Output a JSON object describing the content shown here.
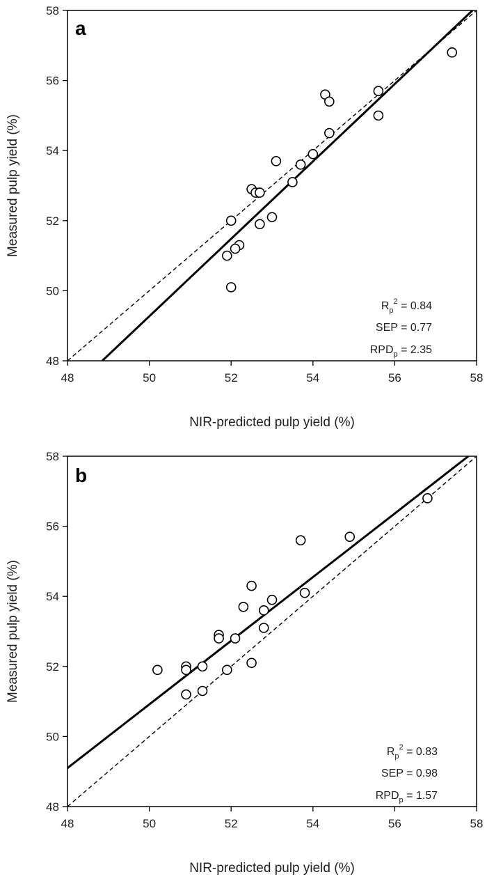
{
  "chart_data": [
    {
      "type": "scatter",
      "panel_label": "a",
      "xlabel": "NIR-predicted pulp yield (%)",
      "ylabel": "Measured pulp yield (%)",
      "xlim": [
        48,
        58
      ],
      "ylim": [
        48,
        58
      ],
      "xticks": [
        "48",
        "50",
        "52",
        "54",
        "56",
        "58"
      ],
      "yticks": [
        "48",
        "50",
        "52",
        "54",
        "56",
        "58"
      ],
      "grid": false,
      "points": {
        "x": [
          57.4,
          55.6,
          55.6,
          54.3,
          54.4,
          54.4,
          54.0,
          53.7,
          53.1,
          53.5,
          52.5,
          52.6,
          52.7,
          52.7,
          53.0,
          52.0,
          52.2,
          52.1,
          51.9,
          52.0
        ],
        "y": [
          56.8,
          55.7,
          55.0,
          55.6,
          55.4,
          54.5,
          53.9,
          53.6,
          53.7,
          53.1,
          52.9,
          52.8,
          52.8,
          51.9,
          52.1,
          52.0,
          51.3,
          51.2,
          51.0,
          50.1
        ]
      },
      "fit_line": {
        "x": [
          48.85,
          57.9
        ],
        "y": [
          48,
          58
        ]
      },
      "identity_line": {
        "x": [
          48,
          58
        ],
        "y": [
          48,
          58
        ]
      },
      "stats": [
        {
          "main": "R",
          "sub": "p",
          "sup": "2",
          "rest": " = 0.84"
        },
        {
          "main": "SEP = 0.77",
          "sub": "",
          "sup": "",
          "rest": ""
        },
        {
          "main": "RPD",
          "sub": "p",
          "sup": "",
          "rest": " = 2.35"
        }
      ]
    },
    {
      "type": "scatter",
      "panel_label": "b",
      "xlabel": "NIR-predicted pulp yield (%)",
      "ylabel": "Measured pulp yield (%)",
      "xlim": [
        48,
        58
      ],
      "ylim": [
        48,
        58
      ],
      "xticks": [
        "48",
        "50",
        "52",
        "54",
        "56",
        "58"
      ],
      "yticks": [
        "48",
        "50",
        "52",
        "54",
        "56",
        "58"
      ],
      "grid": false,
      "points": {
        "x": [
          56.8,
          54.9,
          53.7,
          52.5,
          53.8,
          53.0,
          52.3,
          52.8,
          52.8,
          51.7,
          51.7,
          52.1,
          50.2,
          50.9,
          50.9,
          51.3,
          51.9,
          52.5,
          50.9,
          51.3
        ],
        "y": [
          56.8,
          55.7,
          55.6,
          54.3,
          54.1,
          53.9,
          53.7,
          53.6,
          53.1,
          52.9,
          52.8,
          52.8,
          51.9,
          52.0,
          51.9,
          52.0,
          51.9,
          52.1,
          51.2,
          51.3
        ]
      },
      "fit_line": {
        "x": [
          48,
          57.8
        ],
        "y": [
          49.1,
          58
        ]
      },
      "identity_line": {
        "x": [
          48,
          58
        ],
        "y": [
          48,
          58
        ]
      },
      "stats": [
        {
          "main": "R",
          "sub": "p",
          "sup": "2",
          "rest": " = 0.83"
        },
        {
          "main": "SEP = 0.98",
          "sub": "",
          "sup": "",
          "rest": ""
        },
        {
          "main": "RPD",
          "sub": "p",
          "sup": "",
          "rest": " = 1.57"
        }
      ]
    }
  ]
}
